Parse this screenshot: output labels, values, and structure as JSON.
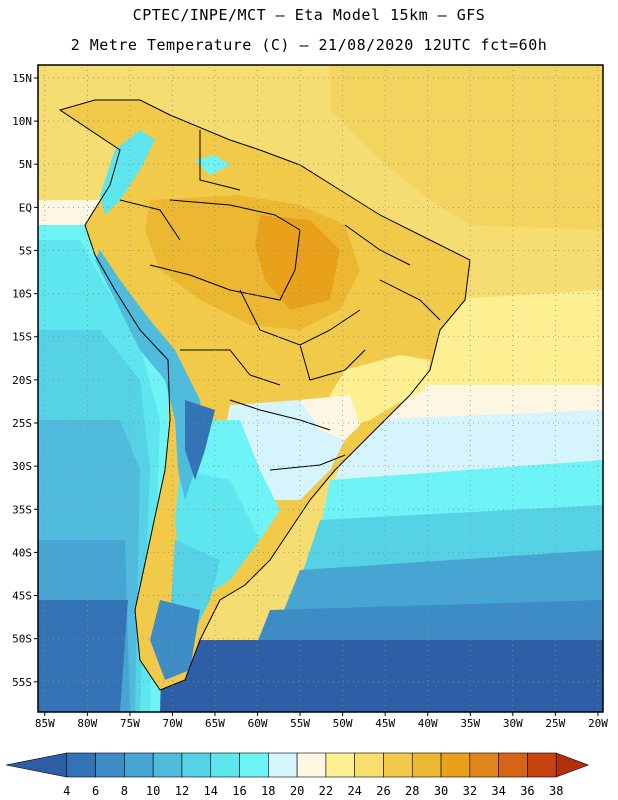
{
  "header": {
    "line1": "CPTEC/INPE/MCT –  Eta Model 15km – GFS",
    "line2": "2 Metre Temperature (C) – 21/08/2020 12UTC fct=60h"
  },
  "map": {
    "lat_labels": [
      "15N",
      "10N",
      "5N",
      "EQ",
      "5S",
      "10S",
      "15S",
      "20S",
      "25S",
      "30S",
      "35S",
      "40S",
      "45S",
      "50S",
      "55S"
    ],
    "lon_labels": [
      "85W",
      "80W",
      "75W",
      "70W",
      "65W",
      "60W",
      "55W",
      "50W",
      "45W",
      "40W",
      "35W",
      "30W",
      "25W",
      "20W"
    ]
  },
  "colorbar": {
    "labels": [
      "4",
      "6",
      "8",
      "10",
      "12",
      "14",
      "16",
      "18",
      "20",
      "22",
      "24",
      "26",
      "28",
      "30",
      "32",
      "34",
      "36",
      "38"
    ],
    "colors": [
      "#2e5fa6",
      "#3474b6",
      "#3d8cc6",
      "#46a5d3",
      "#4fbcdd",
      "#55d2e6",
      "#5de6ee",
      "#6ef4f6",
      "#d6f4fb",
      "#fdf6e2",
      "#fdf093",
      "#f8de6a",
      "#f2ca4a",
      "#ecb832",
      "#e9a11c",
      "#e1861a",
      "#d66316",
      "#c64311",
      "#b52e0a"
    ]
  }
}
